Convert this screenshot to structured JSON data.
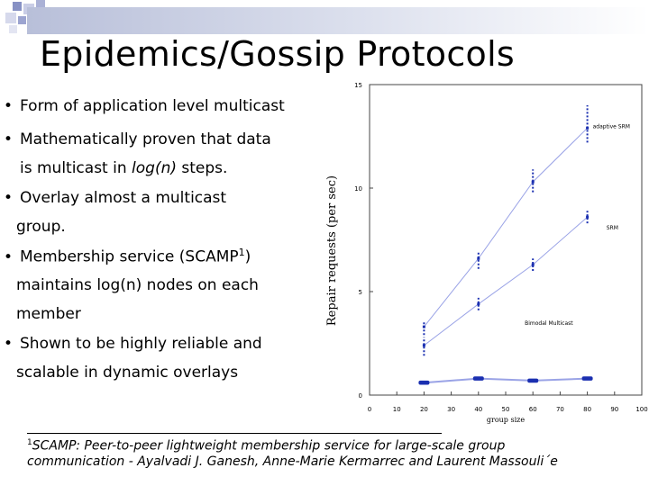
{
  "slide": {
    "title": "Epidemics/Gossip Protocols",
    "bullets": [
      {
        "text": "Form of application level multicast"
      },
      {
        "text": "Mathematically proven that data"
      },
      {
        "text_parts": [
          "is multicast in ",
          "log(n)",
          " steps."
        ]
      },
      {
        "text": "Overlay almost a multicast"
      },
      {
        "text": "group."
      },
      {
        "text_parts": [
          "Membership service (SCAMP",
          "1",
          ")"
        ]
      },
      {
        "text": "maintains log(n) nodes on each"
      },
      {
        "text": "member"
      },
      {
        "text": "Shown to be highly reliable and"
      },
      {
        "text": "scalable in dynamic overlays"
      }
    ],
    "footnote": {
      "marker": "1",
      "line1": "SCAMP: Peer-to-peer lightweight membership service for large-scale group",
      "line2": "communication - Ayalvadi J. Ganesh, Anne-Marie Kermarrec and Laurent Massouli´e"
    },
    "colors": {
      "series": "#9aa3e6",
      "markers": "#1a2fb0",
      "title_bar": "#b8bfd9"
    }
  },
  "chart_data": {
    "type": "line",
    "xlabel": "group size",
    "ylabel": "Repair requests (per sec)",
    "xlim": [
      0,
      100
    ],
    "ylim": [
      0,
      15
    ],
    "x_ticks": [
      "0",
      "10",
      "20",
      "30",
      "40",
      "50",
      "60",
      "70",
      "80",
      "90",
      "100"
    ],
    "y_ticks": [
      "0",
      "5",
      "10",
      "15"
    ],
    "grid": false,
    "series": [
      {
        "name": "adaptive SRM",
        "x": [
          20,
          40,
          60,
          80
        ],
        "y": [
          3.3,
          6.6,
          10.3,
          12.9
        ]
      },
      {
        "name": "SRM",
        "x": [
          20,
          40,
          60,
          80
        ],
        "y": [
          2.4,
          4.4,
          6.3,
          8.6
        ]
      },
      {
        "name": "Bimodal Multicast",
        "x": [
          20,
          40,
          60,
          80
        ],
        "y": [
          0.6,
          0.8,
          0.7,
          0.8
        ]
      }
    ],
    "point_spread": [
      [
        [
          2.9,
          3.6
        ],
        [
          6.1,
          6.9
        ],
        [
          9.8,
          10.9
        ],
        [
          12.2,
          14.0
        ]
      ],
      [
        [
          1.9,
          2.8
        ],
        [
          4.1,
          4.7
        ],
        [
          6.0,
          6.6
        ],
        [
          8.3,
          8.9
        ]
      ],
      [
        [
          0.5,
          0.7
        ],
        [
          0.7,
          0.9
        ],
        [
          0.6,
          0.8
        ],
        [
          0.7,
          0.9
        ]
      ]
    ]
  }
}
